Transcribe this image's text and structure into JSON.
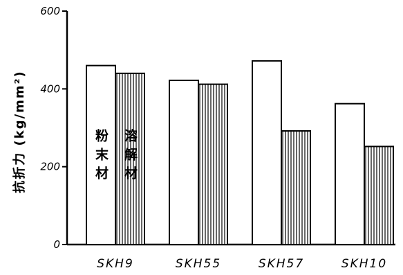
{
  "chart_data": {
    "type": "bar",
    "title": "",
    "xlabel": "",
    "ylabel": "抗折力 (kg/mm²)",
    "ylim": [
      0,
      600
    ],
    "yticks": [
      0,
      200,
      400,
      600
    ],
    "ytick_labels": [
      "0",
      "200",
      "400",
      "600"
    ],
    "categories": [
      "SKH9",
      "SKH55",
      "SKH57",
      "SKH10"
    ],
    "series": [
      {
        "name": "粉末材",
        "values": [
          460,
          422,
          472,
          362
        ],
        "fill": "plain"
      },
      {
        "name": "溶解材",
        "values": [
          440,
          412,
          292,
          252
        ],
        "fill": "vertical-hatch"
      }
    ],
    "legend_placement": "inside first category bars",
    "grid": false,
    "colors": {
      "ink": "#000000",
      "background": "#ffffff"
    }
  }
}
